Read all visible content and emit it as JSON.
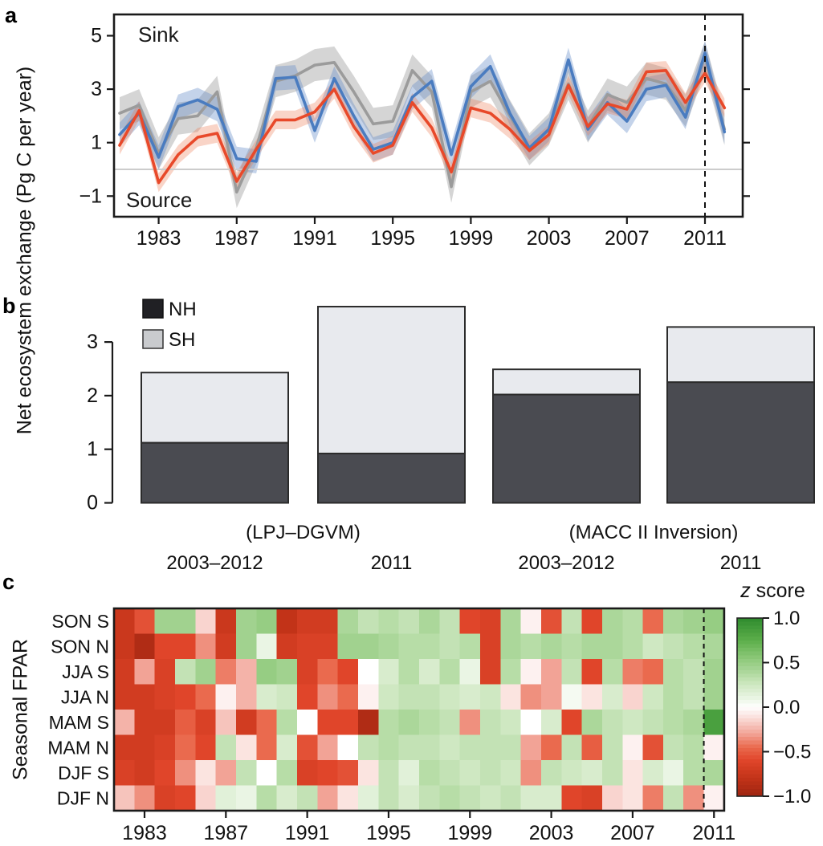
{
  "shared": {
    "y_label": "Net ecosystem exchange (Pg C per year)"
  },
  "chart_data": [
    {
      "type": "line",
      "panel_letter": "a",
      "annotations": {
        "sink": "Sink",
        "source": "Source"
      },
      "x_ticks": [
        1983,
        1987,
        1991,
        1995,
        1999,
        2003,
        2007,
        2011
      ],
      "y_ticks": [
        5,
        3,
        1,
        -1
      ],
      "ylim": [
        -1.8,
        5.8
      ],
      "zero_line": 0,
      "dashed_line_x": 2011,
      "x": [
        1981,
        1982,
        1983,
        1984,
        1985,
        1986,
        1987,
        1988,
        1989,
        1990,
        1991,
        1992,
        1993,
        1994,
        1995,
        1996,
        1997,
        1998,
        1999,
        2000,
        2001,
        2002,
        2003,
        2004,
        2005,
        2006,
        2007,
        2008,
        2009,
        2010,
        2011,
        2012
      ],
      "series": [
        {
          "key": "gray-inversion-line",
          "line_color": "#9b9b9b",
          "band_color": "rgba(150,150,150,0.40)",
          "band_half_width": 0.6,
          "values": [
            2.1,
            2.4,
            0.6,
            1.9,
            2.0,
            2.9,
            -0.85,
            0.8,
            3.3,
            3.5,
            3.9,
            4.0,
            2.9,
            1.7,
            1.8,
            3.7,
            2.9,
            -0.65,
            2.9,
            3.3,
            2.0,
            0.75,
            1.5,
            3.2,
            1.6,
            2.8,
            2.5,
            3.4,
            3.2,
            2.2,
            4.2,
            1.5
          ]
        },
        {
          "key": "blue-inversion-line",
          "line_color": "#4a7cc0",
          "band_color": "rgba(100,140,200,0.38)",
          "band_half_width": 0.45,
          "values": [
            1.3,
            2.1,
            0.45,
            2.35,
            2.6,
            2.25,
            0.4,
            0.3,
            3.4,
            3.45,
            1.45,
            3.4,
            2.0,
            0.75,
            1.0,
            2.7,
            3.3,
            0.55,
            3.1,
            3.85,
            2.1,
            0.8,
            1.5,
            4.1,
            1.5,
            2.5,
            1.8,
            3.0,
            3.15,
            1.95,
            4.35,
            1.4
          ]
        },
        {
          "key": "red-model-line",
          "line_color": "#e8492a",
          "band_color": "rgba(237,120,80,0.32)",
          "band_half_width": 0.35,
          "values": [
            0.9,
            2.2,
            -0.5,
            0.55,
            1.2,
            1.35,
            -0.45,
            0.75,
            1.85,
            1.85,
            2.15,
            3.0,
            1.6,
            0.6,
            0.9,
            2.5,
            1.55,
            -0.1,
            2.3,
            2.1,
            1.5,
            0.7,
            1.3,
            3.15,
            1.6,
            2.45,
            2.25,
            3.65,
            3.7,
            2.5,
            3.6,
            2.3
          ]
        }
      ]
    },
    {
      "type": "bar",
      "panel_letter": "b",
      "y_ticks": [
        0,
        1,
        2,
        3
      ],
      "legend": [
        {
          "label": "NH",
          "color": "#202024"
        },
        {
          "label": "SH",
          "color": "#c9cbce"
        }
      ],
      "bar_colors": {
        "nh": "#4a4b51",
        "sh": "#e8eaee",
        "border": "#2b2b2b"
      },
      "groups": [
        {
          "label": "(LPJ–DGVM)",
          "bars": [
            {
              "x_label": "2003–2012",
              "nh": 1.12,
              "sh": 1.31
            },
            {
              "x_label": "2011",
              "nh": 0.92,
              "sh": 2.74
            }
          ]
        },
        {
          "label": "(MACC II Inversion)",
          "bars": [
            {
              "x_label": "2003–2012",
              "nh": 2.02,
              "sh": 0.47
            },
            {
              "x_label": "2011",
              "nh": 2.25,
              "sh": 1.03
            }
          ]
        }
      ]
    },
    {
      "type": "heatmap",
      "panel_letter": "c",
      "y_label": "Seasonal FPAR",
      "x_ticks": [
        1983,
        1987,
        1991,
        1995,
        1999,
        2003,
        2007,
        2011
      ],
      "dashed_line_x": 2011,
      "rows": [
        "SON S",
        "SON N",
        "JJA S",
        "JJA N",
        "MAM S",
        "MAM N",
        "DJF S",
        "DJF N"
      ],
      "years": [
        1982,
        1983,
        1984,
        1985,
        1986,
        1987,
        1988,
        1989,
        1990,
        1991,
        1992,
        1993,
        1994,
        1995,
        1996,
        1997,
        1998,
        1999,
        2000,
        2001,
        2002,
        2003,
        2004,
        2005,
        2006,
        2007,
        2008,
        2009,
        2010,
        2011
      ],
      "z_values": [
        [
          -0.75,
          -0.55,
          0.45,
          0.45,
          -0.15,
          -0.75,
          0.45,
          0.5,
          -0.8,
          -0.7,
          -0.7,
          0.4,
          0.3,
          0.35,
          0.3,
          0.4,
          0.3,
          -0.6,
          -0.65,
          0.4,
          -0.05,
          -0.55,
          0.3,
          -0.6,
          0.4,
          0.35,
          -0.45,
          0.4,
          0.45,
          0.5
        ],
        [
          -0.75,
          -0.9,
          -0.6,
          -0.6,
          -0.35,
          -0.7,
          0.45,
          0.1,
          -0.7,
          -0.65,
          -0.65,
          0.45,
          0.45,
          0.4,
          0.35,
          0.35,
          0.3,
          0.35,
          -0.65,
          0.4,
          0.35,
          0.4,
          0.35,
          0.4,
          0.4,
          0.35,
          0.25,
          0.3,
          0.35,
          0.4
        ],
        [
          -0.7,
          -0.3,
          -0.65,
          0.3,
          0.45,
          -0.4,
          -0.25,
          0.5,
          0.45,
          -0.65,
          -0.45,
          -0.6,
          0.0,
          0.2,
          0.35,
          0.2,
          0.35,
          0.1,
          -0.65,
          0.35,
          -0.05,
          -0.3,
          0.3,
          -0.6,
          0.35,
          -0.4,
          -0.45,
          0.35,
          0.3,
          0.45
        ],
        [
          -0.7,
          -0.7,
          -0.65,
          -0.6,
          -0.45,
          -0.05,
          -0.25,
          0.2,
          0.25,
          -0.6,
          -0.35,
          -0.45,
          -0.05,
          0.25,
          0.3,
          0.3,
          0.25,
          0.2,
          0.25,
          -0.1,
          -0.35,
          -0.3,
          0.05,
          -0.1,
          0.2,
          -0.15,
          0.25,
          0.35,
          0.3,
          0.45
        ],
        [
          -0.25,
          -0.7,
          -0.7,
          -0.5,
          -0.65,
          -0.2,
          -0.7,
          -0.45,
          0.35,
          0.0,
          -0.6,
          -0.6,
          -0.9,
          0.35,
          0.4,
          0.35,
          0.3,
          -0.35,
          0.3,
          0.25,
          0.0,
          0.2,
          -0.6,
          0.4,
          0.3,
          0.25,
          0.3,
          0.35,
          0.4,
          0.85
        ],
        [
          -0.7,
          -0.7,
          -0.65,
          -0.45,
          -0.6,
          0.3,
          -0.1,
          -0.45,
          0.2,
          -0.55,
          -0.3,
          0.0,
          0.3,
          0.35,
          0.3,
          0.3,
          0.25,
          0.3,
          0.3,
          0.3,
          -0.3,
          -0.45,
          0.3,
          -0.5,
          0.3,
          -0.05,
          -0.55,
          0.3,
          0.35,
          -0.05
        ],
        [
          -0.65,
          -0.7,
          -0.6,
          -0.35,
          -0.1,
          -0.3,
          0.3,
          0.0,
          0.35,
          -0.65,
          -0.6,
          -0.55,
          -0.1,
          0.3,
          0.15,
          0.35,
          0.3,
          0.25,
          0.3,
          0.25,
          -0.35,
          0.3,
          0.25,
          0.2,
          0.3,
          -0.1,
          0.2,
          0.1,
          0.35,
          0.4
        ],
        [
          -0.2,
          -0.35,
          -0.65,
          -0.6,
          -0.15,
          0.15,
          0.1,
          0.35,
          0.2,
          0.3,
          -0.3,
          -0.1,
          0.15,
          0.3,
          0.2,
          0.3,
          0.35,
          0.3,
          0.25,
          0.3,
          0.2,
          0.2,
          -0.6,
          -0.65,
          -0.15,
          -0.1,
          -0.4,
          0.3,
          -0.35,
          -0.05
        ]
      ],
      "colorbar": {
        "title_italic": "z",
        "title_rest": " score",
        "tick_labels": [
          "1.0",
          "0.5",
          "0.0",
          "−0.5",
          "−1.0"
        ],
        "tick_values": [
          1,
          0.5,
          0,
          -0.5,
          -1
        ],
        "stops": [
          [
            -1,
            "#9e2511"
          ],
          [
            -0.8,
            "#c23318"
          ],
          [
            -0.6,
            "#e0452a"
          ],
          [
            -0.45,
            "#ea6a4e"
          ],
          [
            -0.3,
            "#f2a396"
          ],
          [
            -0.12,
            "#fadeda"
          ],
          [
            0,
            "#ffffff"
          ],
          [
            0.1,
            "#eaf5e4"
          ],
          [
            0.25,
            "#cfe8c2"
          ],
          [
            0.4,
            "#abd79a"
          ],
          [
            0.55,
            "#8cc878"
          ],
          [
            0.75,
            "#5cae4a"
          ],
          [
            1,
            "#2e8b2e"
          ]
        ]
      }
    }
  ]
}
